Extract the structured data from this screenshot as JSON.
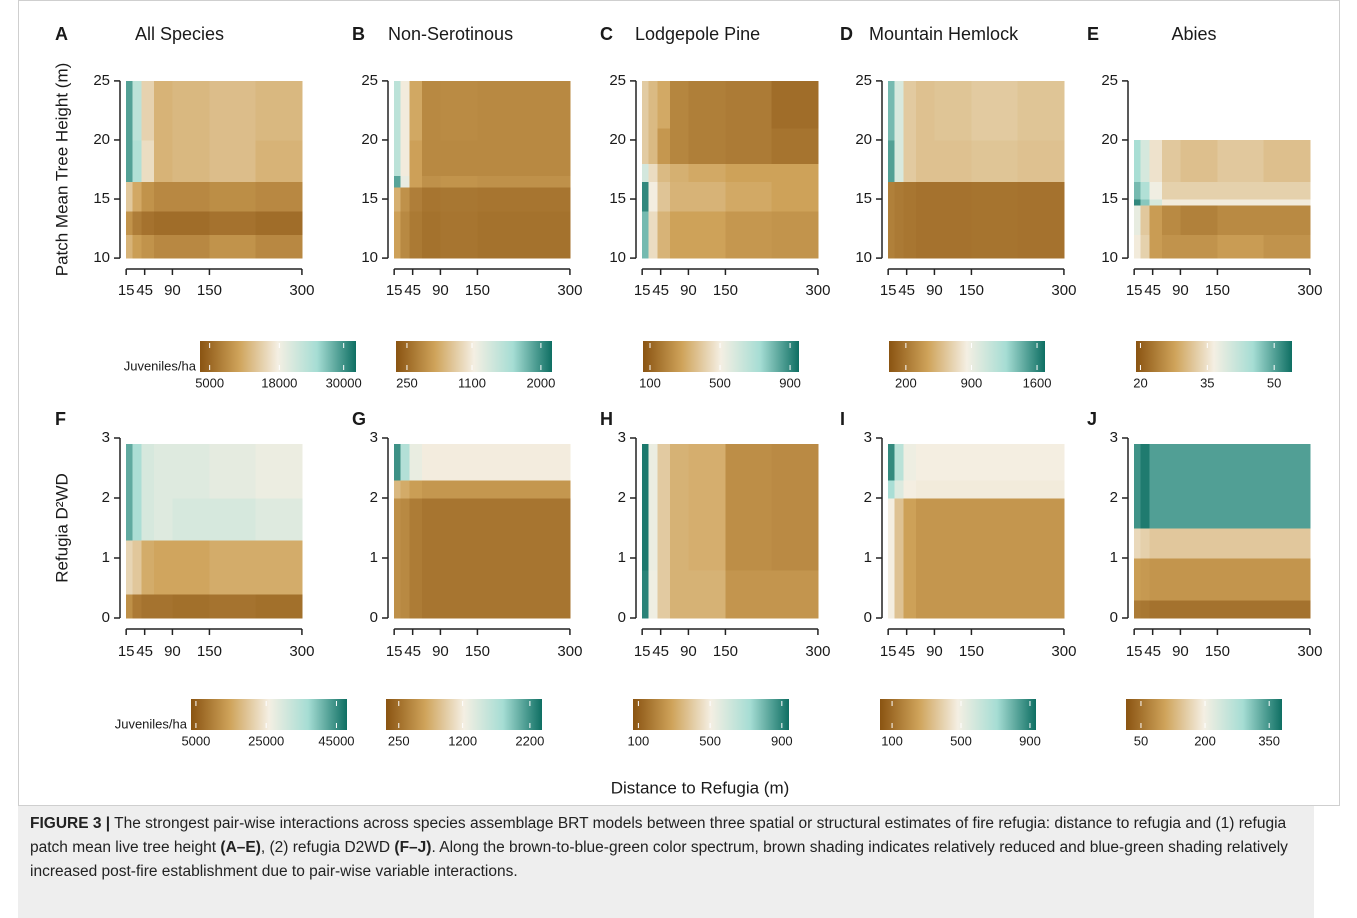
{
  "chart_data": [
    {
      "type": "heatmap",
      "letter": "A",
      "title": "All Species",
      "ylabel": "Patch Mean Tree Height (m)",
      "x_edges": [
        15,
        25,
        40,
        60,
        90,
        150,
        225,
        300
      ],
      "y_edges": [
        10,
        12,
        14,
        16.5,
        20,
        25
      ],
      "values": [
        [
          12000,
          10000,
          9000,
          8000,
          8000,
          9000,
          8000
        ],
        [
          9000,
          7000,
          6000,
          5500,
          5500,
          6000,
          5500
        ],
        [
          14000,
          11000,
          9000,
          8000,
          8000,
          8500,
          8000
        ],
        [
          29000,
          24000,
          16000,
          12000,
          12500,
          13000,
          12000
        ],
        [
          29000,
          23000,
          15000,
          12000,
          12500,
          13000,
          12500
        ]
      ],
      "xlim": [
        5,
        305
      ],
      "xticks": [
        15,
        45,
        90,
        150,
        300
      ],
      "ylim": [
        9.5,
        25.5
      ],
      "yticks": [
        10,
        15,
        20,
        25
      ],
      "colorbar": {
        "label": "Juveniles/ha",
        "clim": [
          3200,
          32300
        ],
        "ticks": [
          5000,
          18000,
          30000
        ]
      }
    },
    {
      "type": "heatmap",
      "letter": "B",
      "title": "Non-Serotinous",
      "x_edges": [
        15,
        25,
        40,
        60,
        90,
        150,
        225,
        300
      ],
      "y_edges": [
        10,
        14,
        16,
        17,
        20,
        25
      ],
      "values": [
        [
          600,
          450,
          350,
          300,
          320,
          300,
          300
        ],
        [
          700,
          500,
          380,
          320,
          330,
          320,
          320
        ],
        [
          1900,
          1200,
          600,
          500,
          520,
          500,
          500
        ],
        [
          1500,
          1100,
          600,
          450,
          450,
          450,
          450
        ],
        [
          1500,
          1100,
          650,
          450,
          460,
          450,
          450
        ]
      ],
      "xlim": [
        5,
        305
      ],
      "xticks": [
        15,
        45,
        90,
        150,
        300
      ],
      "ylim": [
        9.5,
        25.5
      ],
      "yticks": [
        10,
        15,
        20,
        25
      ],
      "colorbar": {
        "clim": [
          107,
          2145
        ],
        "ticks": [
          250,
          1100,
          2000
        ]
      }
    },
    {
      "type": "heatmap",
      "letter": "C",
      "title": "Lodgepole Pine",
      "x_edges": [
        15,
        25,
        40,
        60,
        90,
        150,
        225,
        300
      ],
      "y_edges": [
        10,
        14,
        16.5,
        18,
        21,
        25
      ],
      "values": [
        [
          800,
          450,
          330,
          280,
          280,
          250,
          240
        ],
        [
          900,
          500,
          380,
          330,
          330,
          300,
          280
        ],
        [
          600,
          450,
          350,
          320,
          300,
          280,
          280
        ],
        [
          400,
          350,
          250,
          200,
          180,
          170,
          150
        ],
        [
          400,
          350,
          300,
          200,
          180,
          170,
          130
        ]
      ],
      "xlim": [
        5,
        305
      ],
      "xticks": [
        15,
        45,
        90,
        150,
        300
      ],
      "ylim": [
        9.5,
        25.5
      ],
      "yticks": [
        10,
        15,
        20,
        25
      ],
      "colorbar": {
        "clim": [
          60,
          951
        ],
        "ticks": [
          100,
          500,
          900
        ]
      }
    },
    {
      "type": "heatmap",
      "letter": "D",
      "title": "Mountain Hemlock",
      "x_edges": [
        15,
        25,
        40,
        60,
        90,
        150,
        225,
        300
      ],
      "y_edges": [
        10,
        16.5,
        20,
        25
      ],
      "values": [
        [
          250,
          220,
          200,
          180,
          180,
          190,
          180
        ],
        [
          1500,
          1000,
          650,
          600,
          600,
          620,
          600
        ],
        [
          1400,
          1000,
          650,
          600,
          620,
          650,
          620
        ]
      ],
      "xlim": [
        5,
        305
      ],
      "xticks": [
        15,
        45,
        90,
        150,
        300
      ],
      "ylim": [
        9.5,
        25.5
      ],
      "yticks": [
        10,
        15,
        20,
        25
      ],
      "colorbar": {
        "clim": [
          20,
          1685
        ],
        "ticks": [
          200,
          900,
          1600
        ]
      }
    },
    {
      "type": "heatmap",
      "letter": "E",
      "title": "Abies",
      "x_edges": [
        15,
        25,
        40,
        60,
        90,
        150,
        225,
        300
      ],
      "y_edges": [
        10,
        12,
        14.5,
        15,
        16.5,
        20
      ],
      "values": [
        [
          36,
          33,
          27,
          26,
          26,
          27,
          26
        ],
        [
          38,
          32,
          27,
          25,
          24,
          25,
          25
        ],
        [
          52,
          47,
          40,
          36,
          36,
          36,
          36
        ],
        [
          48,
          44,
          37,
          33,
          33,
          33,
          33
        ],
        [
          45,
          40,
          35,
          32,
          31,
          32,
          31
        ]
      ],
      "xlim": [
        5,
        305
      ],
      "xticks": [
        15,
        45,
        90,
        150,
        300
      ],
      "ylim": [
        9.5,
        25.5
      ],
      "yticks": [
        10,
        15,
        20,
        25
      ],
      "colorbar": {
        "clim": [
          19,
          54
        ],
        "ticks": [
          20,
          35,
          50
        ]
      }
    },
    {
      "type": "heatmap",
      "letter": "F",
      "ylabel": "Refugia D²WD",
      "x_edges": [
        15,
        25,
        40,
        60,
        90,
        150,
        225,
        300
      ],
      "y_edges": [
        0,
        0.4,
        1.3,
        2,
        2.9
      ],
      "values": [
        [
          12000,
          9000,
          8000,
          8000,
          7500,
          8000,
          7500
        ],
        [
          22000,
          20000,
          16000,
          15000,
          15000,
          16000,
          16000
        ],
        [
          42000,
          36000,
          30000,
          29000,
          30000,
          30000,
          29000
        ],
        [
          42000,
          36000,
          30000,
          29000,
          29000,
          28000,
          27000
        ]
      ],
      "xlim": [
        5,
        305
      ],
      "xticks": [
        15,
        45,
        90,
        150,
        300
      ],
      "ylim": [
        -0.1,
        3.1
      ],
      "yticks": [
        0,
        1,
        2,
        3
      ],
      "colorbar": {
        "label": "Juveniles/ha",
        "clim": [
          3600,
          48000
        ],
        "ticks": [
          5000,
          25000,
          45000
        ]
      }
    },
    {
      "type": "heatmap",
      "letter": "G",
      "x_edges": [
        15,
        25,
        40,
        60,
        90,
        150,
        225,
        300
      ],
      "y_edges": [
        0,
        2,
        2.3,
        2.9
      ],
      "values": [
        [
          500,
          450,
          350,
          300,
          300,
          300,
          300
        ],
        [
          800,
          700,
          600,
          550,
          550,
          550,
          550
        ],
        [
          2200,
          1700,
          1300,
          1200,
          1200,
          1200,
          1200
        ]
      ],
      "xlim": [
        5,
        305
      ],
      "xticks": [
        15,
        45,
        90,
        150,
        300
      ],
      "ylim": [
        -0.1,
        3.1
      ],
      "yticks": [
        0,
        1,
        2,
        3
      ],
      "colorbar": {
        "clim": [
          60,
          2380
        ],
        "ticks": [
          250,
          1200,
          2200
        ]
      }
    },
    {
      "type": "heatmap",
      "letter": "H",
      "x_edges": [
        15,
        25,
        40,
        60,
        90,
        150,
        225,
        300
      ],
      "y_edges": [
        0,
        0.8,
        2.9
      ],
      "values": [
        [
          900,
          520,
          400,
          330,
          330,
          250,
          250
        ],
        [
          920,
          530,
          400,
          330,
          320,
          230,
          220
        ]
      ],
      "xlim": [
        5,
        305
      ],
      "xticks": [
        15,
        45,
        90,
        150,
        300
      ],
      "ylim": [
        -0.1,
        3.1
      ],
      "yticks": [
        0,
        1,
        2,
        3
      ],
      "colorbar": {
        "clim": [
          70,
          940
        ],
        "ticks": [
          100,
          500,
          900
        ]
      }
    },
    {
      "type": "heatmap",
      "letter": "I",
      "x_edges": [
        15,
        25,
        40,
        60,
        90,
        150,
        225,
        300
      ],
      "y_edges": [
        0,
        2,
        2.3,
        2.9
      ],
      "values": [
        [
          480,
          350,
          250,
          220,
          220,
          220,
          220
        ],
        [
          700,
          550,
          480,
          470,
          470,
          470,
          470
        ],
        [
          880,
          650,
          500,
          480,
          480,
          480,
          480
        ]
      ],
      "xlim": [
        5,
        305
      ],
      "xticks": [
        15,
        45,
        90,
        150,
        300
      ],
      "ylim": [
        -0.1,
        3.1
      ],
      "yticks": [
        0,
        1,
        2,
        3
      ],
      "colorbar": {
        "clim": [
          30,
          935
        ],
        "ticks": [
          100,
          500,
          900
        ]
      }
    },
    {
      "type": "heatmap",
      "letter": "J",
      "x_edges": [
        15,
        25,
        40,
        60,
        90,
        150,
        225,
        300
      ],
      "y_edges": [
        0,
        0.3,
        1,
        1.5,
        2.9
      ],
      "values": [
        [
          60,
          55,
          50,
          50,
          50,
          50,
          50
        ],
        [
          100,
          95,
          90,
          90,
          90,
          90,
          90
        ],
        [
          170,
          160,
          150,
          150,
          150,
          150,
          150
        ],
        [
          350,
          370,
          340,
          340,
          340,
          340,
          340
        ]
      ],
      "xlim": [
        5,
        305
      ],
      "xticks": [
        15,
        45,
        90,
        150,
        300
      ],
      "ylim": [
        -0.1,
        3.1
      ],
      "yticks": [
        0,
        1,
        2,
        3
      ],
      "colorbar": {
        "clim": [
          15,
          380
        ],
        "ticks": [
          50,
          200,
          350
        ]
      }
    }
  ],
  "figure": {
    "x_label": "Distance to Refugia (m)",
    "caption": {
      "label": "FIGURE 3 |",
      "parts": [
        {
          "text": " The strongest pair-wise interactions across species assemblage BRT models between three spatial or structural estimates of fire refugia: distance to refugia and (1) refugia patch mean live tree height ",
          "bold": false
        },
        {
          "text": "(A–E)",
          "bold": true
        },
        {
          "text": ", (2) refugia D2WD ",
          "bold": false
        },
        {
          "text": "(F–J)",
          "bold": true
        },
        {
          "text": ". Along the brown-to-blue-green color spectrum, brown shading indicates relatively reduced and blue-green shading relatively increased post-fire establishment due to pair-wise variable interactions.",
          "bold": false
        }
      ]
    }
  }
}
